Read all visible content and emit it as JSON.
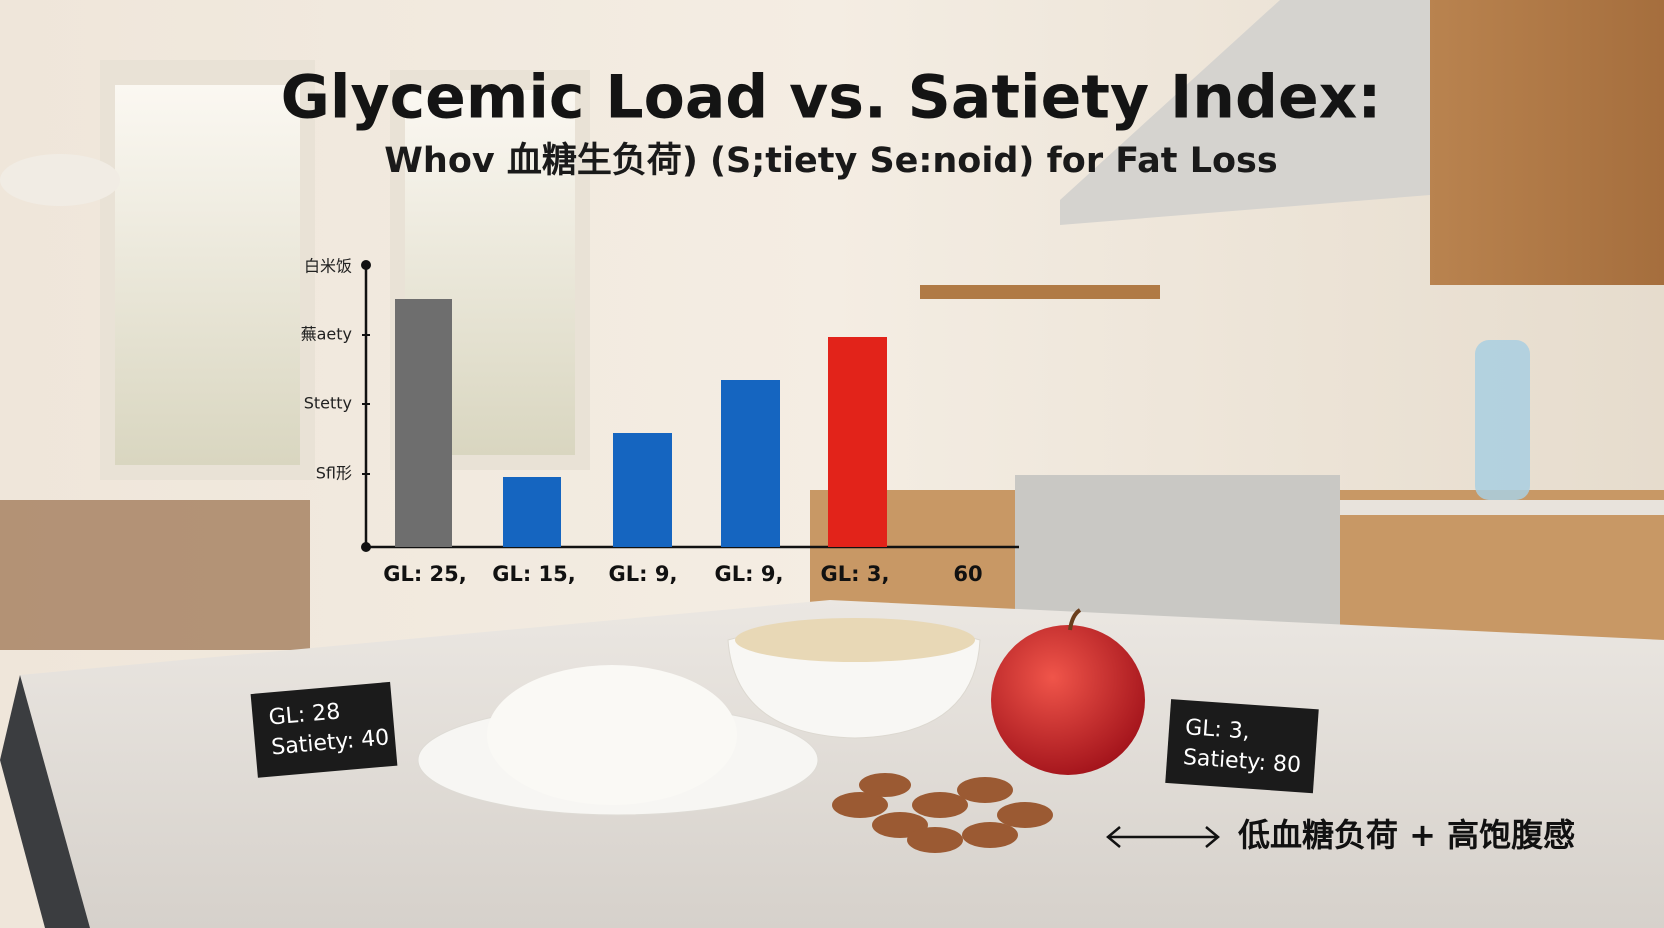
{
  "title": "Glycemic Load vs. Satiety Index:",
  "subtitle": "Whov 血糖生负荷) (S;tiety Se:noid) for Fat Loss",
  "chart": {
    "y_labels": [
      "白米饭",
      "蕪aety",
      "Stetty",
      "Sfl形"
    ],
    "x_labels": [
      "GL: 25,",
      "GL: 15,",
      "GL: 9,",
      "GL: 9,",
      "GL: 3,",
      "60"
    ]
  },
  "cards": [
    {
      "lines": [
        "GL: 28",
        "Satiety: 40"
      ]
    },
    {
      "lines": [
        "GL: 3,",
        "Satiety: 80"
      ]
    }
  ],
  "caption": "低血糖负荷 + 高饱腹感"
}
